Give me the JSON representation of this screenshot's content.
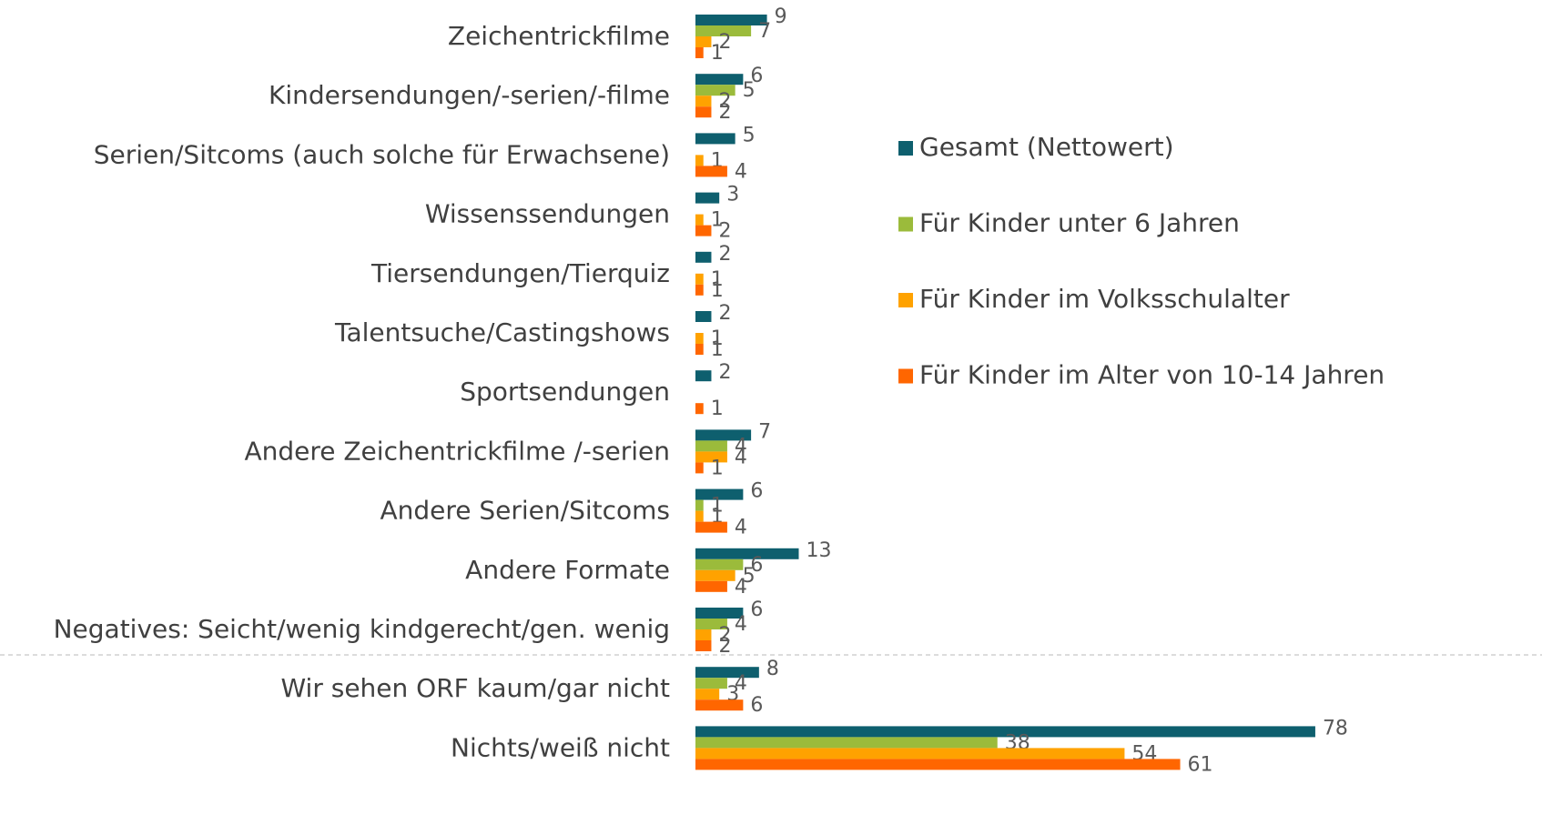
{
  "chart_data": {
    "type": "bar",
    "orientation": "horizontal",
    "categories": [
      "Zeichentrickfilme",
      "Kindersendungen/-serien/-filme",
      "Serien/Sitcoms (auch solche für Erwachsene)",
      "Wissenssendungen",
      "Tiersendungen/Tierquiz",
      "Talentsuche/Castingshows",
      "Sportsendungen",
      "Andere Zeichentrickfilme /-serien",
      "Andere Serien/Sitcoms",
      "Andere Formate",
      "Negatives: Seicht/wenig kindgerecht/gen. wenig",
      "Wir sehen ORF kaum/gar nicht",
      "Nichts/weiß nicht"
    ],
    "series": [
      {
        "name": "Gesamt (Nettowert)",
        "color": "#0e5f6e",
        "values": [
          9,
          6,
          5,
          3,
          2,
          2,
          2,
          7,
          6,
          13,
          6,
          8,
          78
        ]
      },
      {
        "name": "Für Kinder unter 6 Jahren",
        "color": "#9bbb3b",
        "values": [
          7,
          5,
          null,
          null,
          null,
          null,
          null,
          4,
          1,
          6,
          4,
          4,
          38
        ]
      },
      {
        "name": "Für Kinder im Volksschulalter",
        "color": "#ffa200",
        "values": [
          2,
          2,
          1,
          1,
          1,
          1,
          null,
          4,
          1,
          5,
          2,
          3,
          54
        ]
      },
      {
        "name": "Für Kinder im Alter von 10-14 Jahren",
        "color": "#ff6600",
        "values": [
          1,
          2,
          4,
          2,
          1,
          1,
          1,
          1,
          4,
          4,
          2,
          6,
          61
        ]
      }
    ],
    "legend": "right"
  }
}
